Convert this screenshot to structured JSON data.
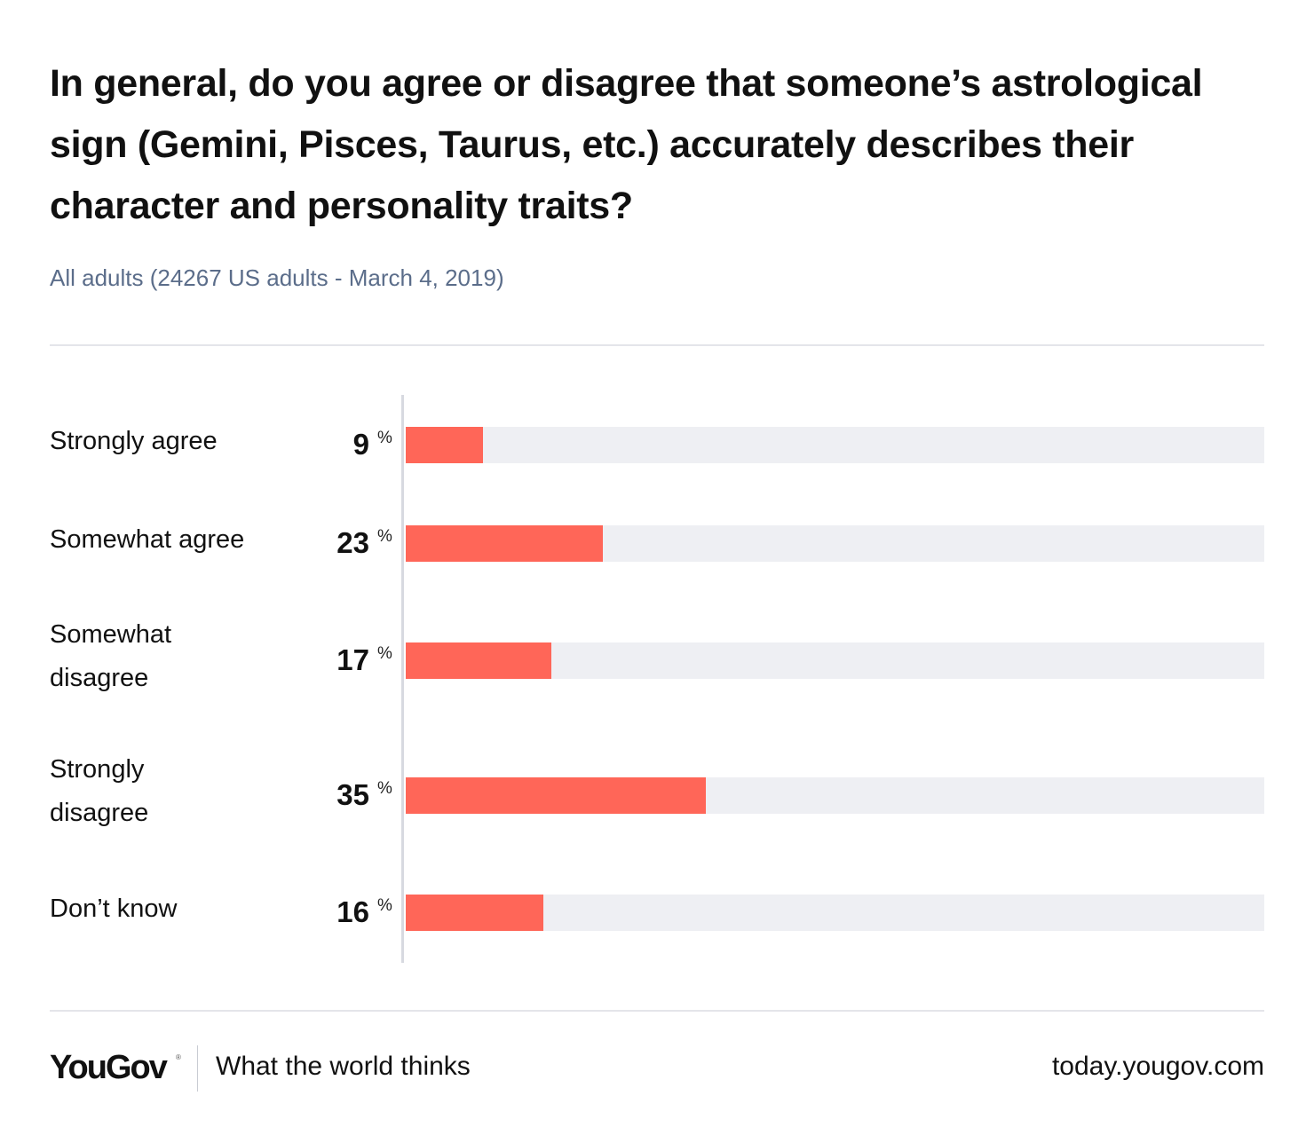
{
  "header": {
    "title": "In general, do you agree or disagree that someone’s astrological sign (Gemini, Pisces, Taurus, etc.) accurately describes their character and personality traits?",
    "subtitle": "All adults (24267 US adults - March 4, 2019)"
  },
  "chart_data": {
    "type": "bar",
    "orientation": "horizontal",
    "unit": "%",
    "xlim": [
      0,
      100
    ],
    "bar_color": "#ff6658",
    "track_color": "#eeeff3",
    "categories": [
      "Strongly agree",
      "Somewhat agree",
      "Somewhat disagree",
      "Strongly disagree",
      "Don’t know"
    ],
    "values": [
      9,
      23,
      17,
      35,
      16
    ],
    "category_lines": [
      [
        "Strongly agree"
      ],
      [
        "Somewhat agree"
      ],
      [
        "Somewhat",
        "disagree"
      ],
      [
        "Strongly",
        "disagree"
      ],
      [
        "Don’t know"
      ]
    ]
  },
  "footer": {
    "logo": "YouGov",
    "logo_mark": "®",
    "tagline": "What the world thinks",
    "site": "today.yougov.com"
  }
}
